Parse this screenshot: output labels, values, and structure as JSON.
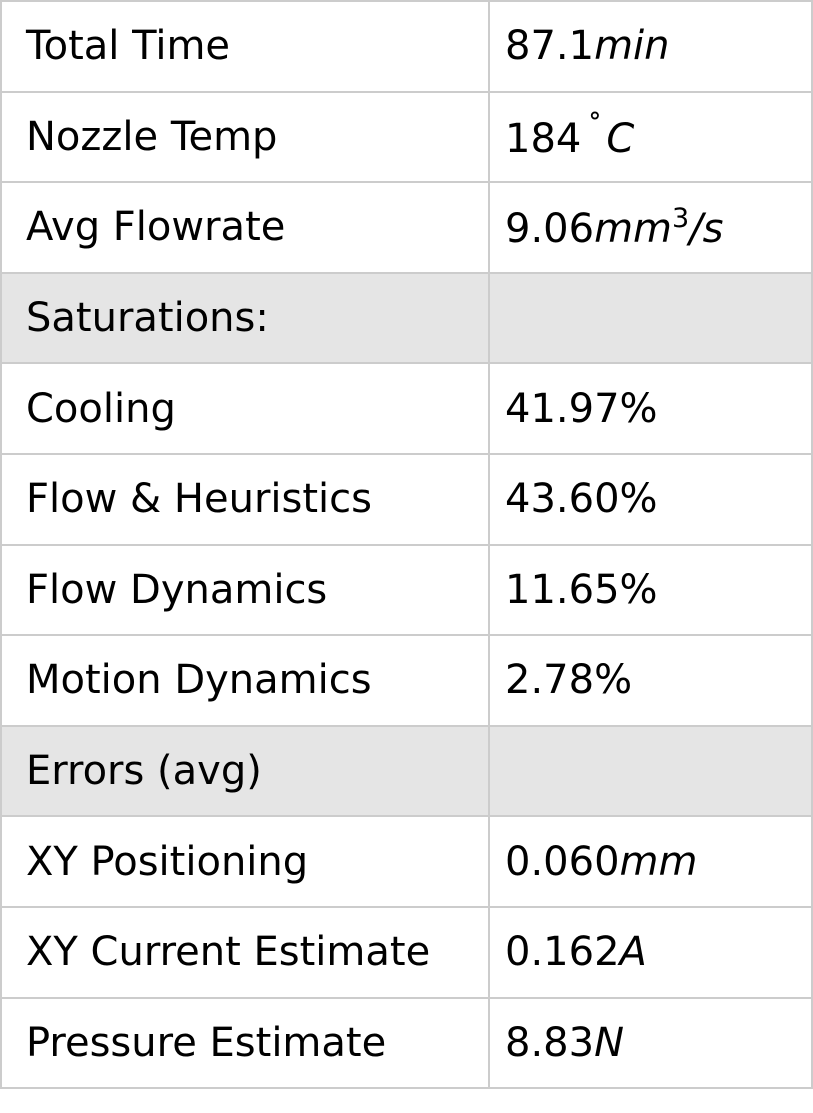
{
  "rows": [
    {
      "label": "Total Time",
      "num": "87.1",
      "unit": "min"
    },
    {
      "label": "Nozzle Temp",
      "num": "184",
      "deg": "˚",
      "unit": "C"
    },
    {
      "label": "Avg Flowrate",
      "num": "9.06",
      "unit": "mm",
      "sup": "3",
      "tail": "/s"
    },
    {
      "label": "Saturations:",
      "section": true
    },
    {
      "label": "Cooling",
      "num": "41.97%"
    },
    {
      "label": "Flow & Heuristics",
      "num": "43.60%"
    },
    {
      "label": "Flow Dynamics",
      "num": "11.65%"
    },
    {
      "label": "Motion Dynamics",
      "num": "2.78%"
    },
    {
      "label": "Errors (avg)",
      "section": true
    },
    {
      "label": "XY Positioning",
      "num": "0.060",
      "unit": "mm"
    },
    {
      "label": "XY Current Estimate",
      "num": "0.162",
      "unit": "A"
    },
    {
      "label": "Pressure Estimate",
      "num": "8.83",
      "unit": "N"
    }
  ],
  "colors": {
    "border": "#cccccc",
    "section_bg": "#e5e5e5"
  }
}
